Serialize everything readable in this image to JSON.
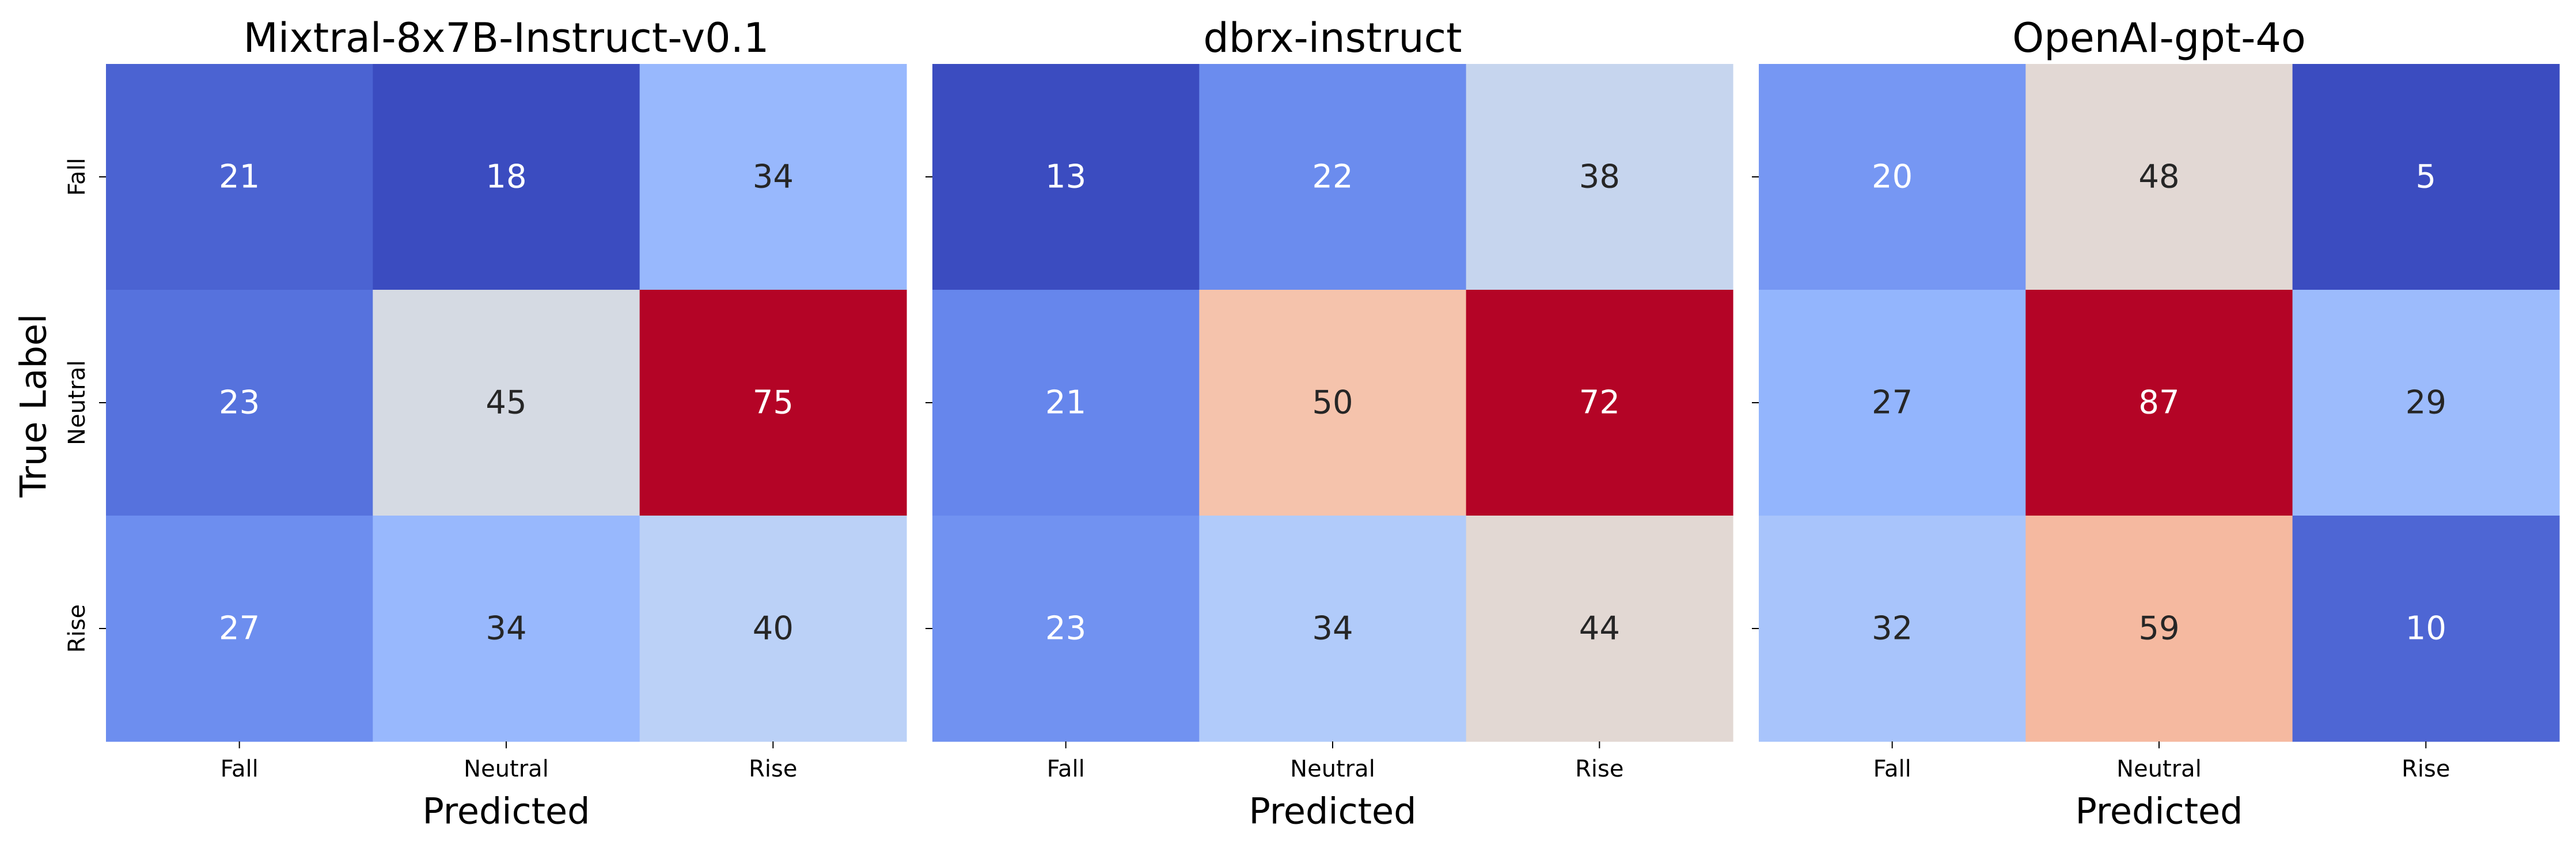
{
  "figure": {
    "ylabel": "True Label"
  },
  "chart_data": [
    {
      "type": "heatmap",
      "title": "Mixtral-8x7B-Instruct-v0.1",
      "xlabel": "Predicted",
      "ylabel": "True Label",
      "x_categories": [
        "Fall",
        "Neutral",
        "Rise"
      ],
      "y_categories": [
        "Fall",
        "Neutral",
        "Rise"
      ],
      "values": [
        [
          21,
          18,
          34
        ],
        [
          23,
          45,
          75
        ],
        [
          27,
          34,
          40
        ]
      ],
      "colormap": "coolwarm",
      "colorbar": false
    },
    {
      "type": "heatmap",
      "title": "dbrx-instruct",
      "xlabel": "Predicted",
      "ylabel": "",
      "x_categories": [
        "Fall",
        "Neutral",
        "Rise"
      ],
      "y_categories": [
        "Fall",
        "Neutral",
        "Rise"
      ],
      "values": [
        [
          13,
          22,
          38
        ],
        [
          21,
          50,
          72
        ],
        [
          23,
          34,
          44
        ]
      ],
      "colormap": "coolwarm",
      "colorbar": false
    },
    {
      "type": "heatmap",
      "title": "OpenAI-gpt-4o",
      "xlabel": "Predicted",
      "ylabel": "",
      "x_categories": [
        "Fall",
        "Neutral",
        "Rise"
      ],
      "y_categories": [
        "Fall",
        "Neutral",
        "Rise"
      ],
      "values": [
        [
          20,
          48,
          5
        ],
        [
          27,
          87,
          29
        ],
        [
          32,
          59,
          10
        ]
      ],
      "colormap": "coolwarm",
      "colorbar": false
    }
  ]
}
